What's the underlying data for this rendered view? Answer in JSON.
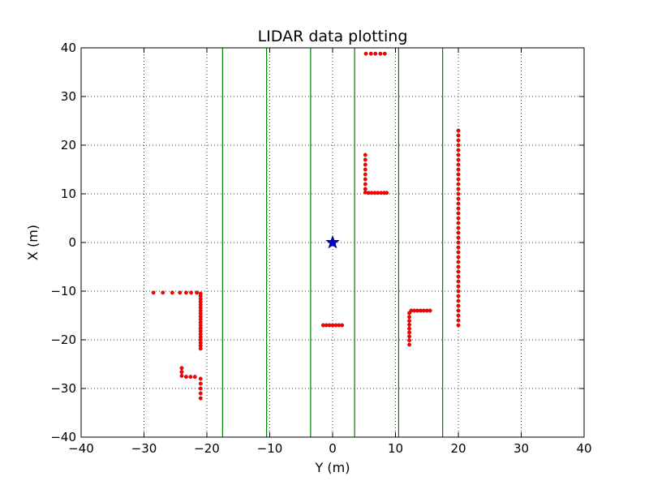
{
  "chart_data": {
    "type": "scatter",
    "title": "LIDAR data plotting",
    "xlabel": "Y (m)",
    "ylabel": "X (m)",
    "xlim": [
      -40,
      40
    ],
    "ylim": [
      -40,
      40
    ],
    "xticks": [
      -40,
      -30,
      -20,
      -10,
      0,
      10,
      20,
      30,
      40
    ],
    "yticks": [
      -40,
      -30,
      -20,
      -10,
      0,
      10,
      20,
      30,
      40
    ],
    "xtick_labels": [
      "−40",
      "−30",
      "−20",
      "−10",
      "0",
      "10",
      "20",
      "30",
      "40"
    ],
    "ytick_labels": [
      "−40",
      "−30",
      "−20",
      "−10",
      "0",
      "10",
      "20",
      "30",
      "40"
    ],
    "grid": true,
    "lane_lines": {
      "x": [
        -17.5,
        -10.5,
        -3.5,
        3.5,
        10.5,
        17.5
      ],
      "color": "#008000"
    },
    "ego_marker": {
      "x": 0,
      "y": 0,
      "shape": "star",
      "color": "#0000cc"
    },
    "points_color": "#ff0000",
    "points": [
      [
        5.3,
        38.8
      ],
      [
        6.1,
        38.8
      ],
      [
        6.8,
        38.8
      ],
      [
        7.6,
        38.8
      ],
      [
        8.3,
        38.8
      ],
      [
        5.2,
        18.0
      ],
      [
        5.2,
        17.0
      ],
      [
        5.2,
        16.0
      ],
      [
        5.2,
        15.0
      ],
      [
        5.2,
        14.0
      ],
      [
        5.2,
        13.0
      ],
      [
        5.2,
        12.0
      ],
      [
        5.2,
        11.0
      ],
      [
        5.2,
        10.3
      ],
      [
        5.7,
        10.2
      ],
      [
        6.2,
        10.2
      ],
      [
        6.7,
        10.2
      ],
      [
        7.2,
        10.2
      ],
      [
        7.7,
        10.2
      ],
      [
        8.2,
        10.2
      ],
      [
        8.6,
        10.2
      ],
      [
        20.0,
        23.0
      ],
      [
        20.0,
        22.0
      ],
      [
        20.0,
        21.0
      ],
      [
        20.0,
        20.0
      ],
      [
        20.0,
        19.0
      ],
      [
        20.0,
        18.0
      ],
      [
        20.0,
        17.0
      ],
      [
        20.0,
        16.0
      ],
      [
        20.0,
        15.0
      ],
      [
        20.0,
        14.0
      ],
      [
        20.0,
        13.0
      ],
      [
        20.0,
        12.0
      ],
      [
        20.0,
        11.0
      ],
      [
        20.0,
        10.0
      ],
      [
        20.0,
        9.0
      ],
      [
        20.0,
        8.0
      ],
      [
        20.0,
        7.0
      ],
      [
        20.0,
        6.0
      ],
      [
        20.0,
        5.0
      ],
      [
        20.0,
        4.0
      ],
      [
        20.0,
        3.0
      ],
      [
        20.0,
        2.0
      ],
      [
        20.0,
        1.0
      ],
      [
        20.0,
        0.0
      ],
      [
        20.0,
        -1.0
      ],
      [
        20.0,
        -2.0
      ],
      [
        20.0,
        -3.0
      ],
      [
        20.0,
        -4.0
      ],
      [
        20.0,
        -5.0
      ],
      [
        20.0,
        -6.0
      ],
      [
        20.0,
        -7.0
      ],
      [
        20.0,
        -8.0
      ],
      [
        20.0,
        -9.0
      ],
      [
        20.0,
        -10.0
      ],
      [
        20.0,
        -11.0
      ],
      [
        20.0,
        -12.0
      ],
      [
        20.0,
        -13.0
      ],
      [
        20.0,
        -14.0
      ],
      [
        20.0,
        -15.0
      ],
      [
        20.0,
        -16.0
      ],
      [
        20.0,
        -17.0
      ],
      [
        -1.5,
        -17.0
      ],
      [
        -1.0,
        -17.0
      ],
      [
        -0.5,
        -17.0
      ],
      [
        0.0,
        -17.0
      ],
      [
        0.5,
        -17.0
      ],
      [
        1.0,
        -17.0
      ],
      [
        1.5,
        -17.0
      ],
      [
        12.5,
        -14.0
      ],
      [
        13.0,
        -14.0
      ],
      [
        13.5,
        -14.0
      ],
      [
        14.0,
        -14.0
      ],
      [
        14.5,
        -14.0
      ],
      [
        15.0,
        -14.0
      ],
      [
        15.5,
        -14.0
      ],
      [
        12.2,
        -14.5
      ],
      [
        12.2,
        -15.3
      ],
      [
        12.2,
        -16.1
      ],
      [
        12.2,
        -16.9
      ],
      [
        12.2,
        -17.7
      ],
      [
        12.2,
        -18.5
      ],
      [
        12.2,
        -19.3
      ],
      [
        12.2,
        -20.1
      ],
      [
        12.2,
        -21.0
      ],
      [
        -28.5,
        -10.3
      ],
      [
        -27.0,
        -10.3
      ],
      [
        -25.5,
        -10.3
      ],
      [
        -24.3,
        -10.3
      ],
      [
        -23.3,
        -10.3
      ],
      [
        -22.5,
        -10.3
      ],
      [
        -21.6,
        -10.3
      ],
      [
        -21.0,
        -10.5
      ],
      [
        -21.0,
        -11.0
      ],
      [
        -21.0,
        -11.6
      ],
      [
        -21.0,
        -12.2
      ],
      [
        -21.0,
        -12.8
      ],
      [
        -21.0,
        -13.4
      ],
      [
        -21.0,
        -14.0
      ],
      [
        -21.0,
        -14.6
      ],
      [
        -21.0,
        -15.2
      ],
      [
        -21.0,
        -15.8
      ],
      [
        -21.0,
        -16.4
      ],
      [
        -21.0,
        -17.0
      ],
      [
        -21.0,
        -17.6
      ],
      [
        -21.0,
        -18.2
      ],
      [
        -21.0,
        -18.8
      ],
      [
        -21.0,
        -19.4
      ],
      [
        -21.0,
        -20.0
      ],
      [
        -21.0,
        -20.6
      ],
      [
        -21.0,
        -21.2
      ],
      [
        -21.0,
        -21.8
      ],
      [
        -24.0,
        -25.8
      ],
      [
        -24.0,
        -26.6
      ],
      [
        -24.0,
        -27.4
      ],
      [
        -23.3,
        -27.6
      ],
      [
        -22.6,
        -27.6
      ],
      [
        -21.9,
        -27.6
      ],
      [
        -21.0,
        -28.0
      ],
      [
        -21.0,
        -29.0
      ],
      [
        -21.0,
        -30.0
      ],
      [
        -21.0,
        -31.0
      ],
      [
        -21.0,
        -32.0
      ]
    ]
  }
}
